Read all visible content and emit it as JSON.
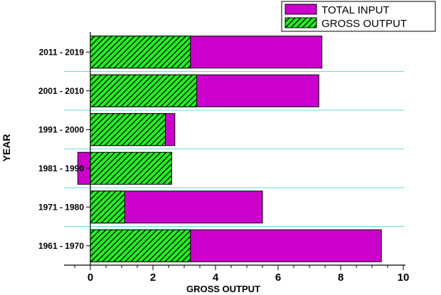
{
  "chart_data": {
    "type": "bar",
    "orientation": "horizontal",
    "title": "",
    "xlabel": "GROSS OUTPUT",
    "ylabel": "YEAR",
    "xlim": [
      -0.4,
      10
    ],
    "xticks": [
      0,
      2,
      4,
      6,
      8,
      10
    ],
    "categories": [
      "1961 - 1970",
      "1971 - 1980",
      "1981 - 1990",
      "1991 - 2000",
      "2001 - 2010",
      "2011 - 2019"
    ],
    "series": [
      {
        "name": "TOTAL INPUT",
        "values": [
          9.3,
          5.5,
          -0.4,
          2.7,
          7.3,
          7.4
        ],
        "color": "#cc00cc",
        "pattern": "solid"
      },
      {
        "name": "GROSS OUTPUT",
        "values": [
          3.2,
          1.1,
          2.6,
          2.4,
          3.4,
          3.2
        ],
        "color": "#22ee22",
        "pattern": "hatched"
      }
    ],
    "grid": "horizontal-lines-between-categories",
    "grid_color": "#66dddd",
    "legend_position": "top-right"
  }
}
